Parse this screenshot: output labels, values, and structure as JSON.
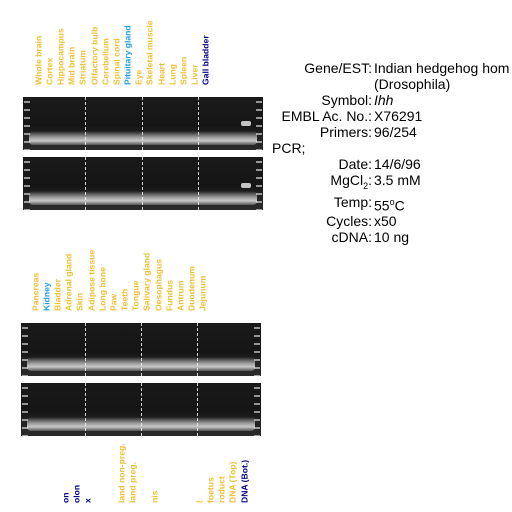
{
  "colors": {
    "tissue": "#f0c030",
    "highlight_blue": "#1fa0e0",
    "dark_blue": "#00008b",
    "gel_bg": "#1a1a1a"
  },
  "panels": {
    "top": {
      "lanes": [
        {
          "label": "Whole brain",
          "color": "tissue"
        },
        {
          "label": "Cortex",
          "color": "tissue"
        },
        {
          "label": "Hippocampus",
          "color": "tissue"
        },
        {
          "label": "Mid brain",
          "color": "tissue"
        },
        {
          "label": "Striatum",
          "color": "tissue"
        },
        {
          "label": "Olfactory bulb",
          "color": "tissue"
        },
        {
          "label": "Cerebellum",
          "color": "tissue"
        },
        {
          "label": "Spinal cord",
          "color": "tissue"
        },
        {
          "label": "Pituitary gland",
          "color": "highlight_blue"
        },
        {
          "label": "Eye",
          "color": "tissue"
        },
        {
          "label": "Skeletal muscle",
          "color": "tissue"
        },
        {
          "label": "Heart",
          "color": "tissue"
        },
        {
          "label": "Lung",
          "color": "tissue"
        },
        {
          "label": "Spleen",
          "color": "tissue"
        },
        {
          "label": "Liver",
          "color": "tissue"
        },
        {
          "label": "Gall bladder",
          "color": "dark_blue"
        }
      ]
    },
    "mid": {
      "lanes": [
        {
          "label": "Pancreas",
          "color": "tissue"
        },
        {
          "label": "Kidney",
          "color": "highlight_blue"
        },
        {
          "label": "Bladder",
          "color": "tissue"
        },
        {
          "label": "Adrenal gland",
          "color": "tissue"
        },
        {
          "label": "Skin",
          "color": "tissue"
        },
        {
          "label": "Adipose tissue",
          "color": "tissue"
        },
        {
          "label": "Long bone",
          "color": "tissue"
        },
        {
          "label": "Paw",
          "color": "tissue"
        },
        {
          "label": "Teeth",
          "color": "tissue"
        },
        {
          "label": "Tongue",
          "color": "tissue"
        },
        {
          "label": "Salivary gland",
          "color": "tissue"
        },
        {
          "label": "Oesophagus",
          "color": "tissue"
        },
        {
          "label": "Fundus",
          "color": "tissue"
        },
        {
          "label": "Antrum",
          "color": "tissue"
        },
        {
          "label": "Duodenum",
          "color": "tissue"
        },
        {
          "label": "Jejunum",
          "color": "tissue"
        }
      ]
    },
    "bottom": {
      "lanes": [
        {
          "label": "on",
          "color": "dark_blue"
        },
        {
          "label": "olon",
          "color": "dark_blue"
        },
        {
          "label": "x",
          "color": "dark_blue"
        },
        {
          "label": "",
          "color": "tissue"
        },
        {
          "label": "",
          "color": "tissue"
        },
        {
          "label": "land non-preg.",
          "color": "tissue"
        },
        {
          "label": "land preg.",
          "color": "tissue"
        },
        {
          "label": "",
          "color": "tissue"
        },
        {
          "label": "nis",
          "color": "tissue"
        },
        {
          "label": "",
          "color": "tissue"
        },
        {
          "label": "",
          "color": "tissue"
        },
        {
          "label": "",
          "color": "tissue"
        },
        {
          "label": "l",
          "color": "tissue"
        },
        {
          "label": "foetus",
          "color": "tissue"
        },
        {
          "label": "roduct",
          "color": "tissue"
        },
        {
          "label": "DNA (Top)",
          "color": "tissue"
        },
        {
          "label": "DNA (Bot.)",
          "color": "dark_blue"
        }
      ]
    }
  },
  "info": {
    "gene_label": "Gene/EST:",
    "gene_value_line1": "Indian hedgehog hom",
    "gene_value_line2": "(Drosophila)",
    "symbol_label": "Symbol:",
    "symbol_value": "Ihh",
    "embl_label": "EMBL Ac. No.:",
    "embl_value": "X76291",
    "primers_label": "Primers:",
    "primers_value": "96/254",
    "pcr_label": "PCR;",
    "date_label": "Date:",
    "date_value": "14/6/96",
    "mgcl_label_main": "MgCl",
    "mgcl_label_sub": "2",
    "mgcl_label_colon": ":",
    "mgcl_value": "3.5 mM",
    "temp_label": "Temp:",
    "temp_value_num": "55",
    "temp_value_sup": "o",
    "temp_value_unit": "C",
    "cycles_label": "Cycles:",
    "cycles_value": "x50",
    "cdna_label": "cDNA:",
    "cdna_value": "10 ng"
  }
}
